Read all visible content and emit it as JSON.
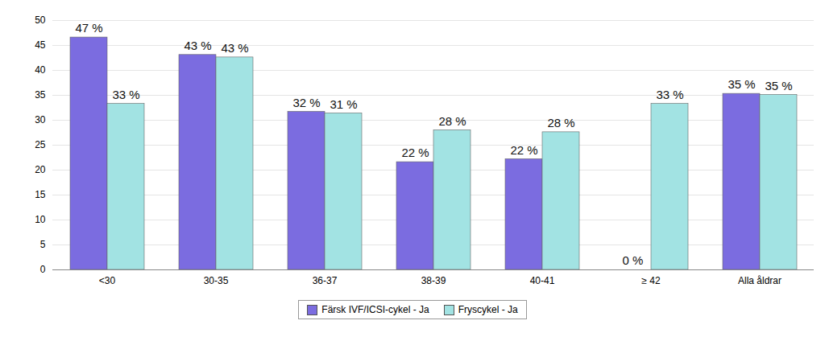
{
  "chart_data": {
    "type": "bar",
    "categories": [
      "<30",
      "30-35",
      "36-37",
      "38-39",
      "40-41",
      "≥ 42",
      "Alla åldrar"
    ],
    "series": [
      {
        "name": "Färsk IVF/ICSI-cykel - Ja",
        "color": "#7b6ce0",
        "values": [
          46.6,
          43.1,
          31.7,
          21.6,
          22.2,
          0,
          35.3
        ],
        "value_labels": [
          "47 %",
          "43 %",
          "32 %",
          "22 %",
          "22 %",
          "0 %",
          "35 %"
        ]
      },
      {
        "name": "Fryscykel - Ja",
        "color": "#a2e3e3",
        "values": [
          33.3,
          42.6,
          31.4,
          28.0,
          27.6,
          33.3,
          35.1
        ],
        "value_labels": [
          "33 %",
          "43 %",
          "31 %",
          "28 %",
          "28 %",
          "33 %",
          "35 %"
        ]
      }
    ],
    "ylim": [
      0,
      50
    ],
    "yticks": [
      0,
      5,
      10,
      15,
      20,
      25,
      30,
      35,
      40,
      45,
      50
    ],
    "grid": true,
    "data_labels": true,
    "legend": "bottom"
  }
}
